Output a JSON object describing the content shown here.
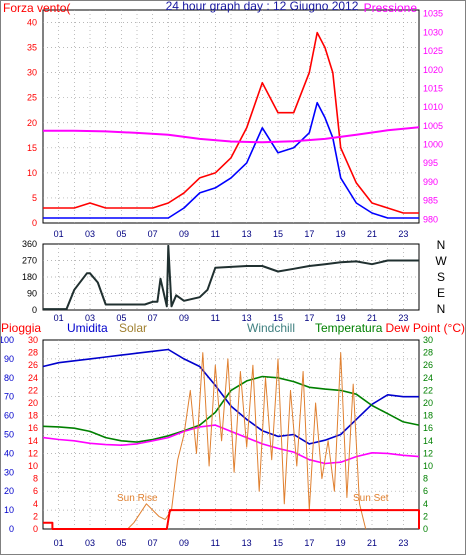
{
  "chart_data": [
    {
      "type": "line",
      "title": "24 hour graph day : 12 Giugno 2012",
      "left_label": "Forza vento(",
      "right_label": "Pressione",
      "x_ticks": [
        "01",
        "03",
        "05",
        "07",
        "09",
        "11",
        "13",
        "15",
        "17",
        "19",
        "21",
        "23"
      ],
      "y_left_ticks": [
        "0",
        "5",
        "10",
        "15",
        "20",
        "25",
        "30",
        "35",
        "40"
      ],
      "y_left_range": [
        0,
        42.5
      ],
      "y_right_ticks": [
        "980",
        "985",
        "990",
        "995",
        "1000",
        "1005",
        "1010",
        "1015",
        "1020",
        "1025",
        "1030",
        "1035"
      ],
      "y_right_range": [
        979,
        1036
      ],
      "grid": true,
      "colors": {
        "gust": "#ff0000",
        "wind": "#0000ff",
        "pressure": "#ff00ff"
      },
      "series": [
        {
          "key": "gust",
          "x": [
            0,
            1,
            2,
            3,
            4,
            5,
            6,
            7,
            8,
            9,
            10,
            11,
            12,
            13,
            14,
            15,
            16,
            17,
            17.5,
            18,
            18.5,
            19,
            20,
            21,
            22,
            23,
            24
          ],
          "values": [
            3,
            3,
            3,
            4,
            3,
            3,
            3,
            3,
            4,
            6,
            9,
            10,
            13,
            19,
            28,
            22,
            22,
            30,
            38,
            35,
            30,
            15,
            8,
            4,
            3,
            2,
            2
          ]
        },
        {
          "key": "wind",
          "x": [
            0,
            1,
            2,
            3,
            4,
            5,
            6,
            7,
            8,
            9,
            10,
            11,
            12,
            13,
            14,
            15,
            16,
            17,
            17.5,
            18,
            18.5,
            19,
            20,
            21,
            22,
            23,
            24
          ],
          "values": [
            1,
            1,
            1,
            1,
            1,
            1,
            1,
            1,
            1,
            3,
            6,
            7,
            9,
            12,
            19,
            14,
            15,
            18,
            24,
            21,
            17,
            9,
            4,
            2,
            1,
            1,
            1
          ]
        },
        {
          "key": "pressure",
          "x": [
            0,
            2,
            4,
            6,
            8,
            10,
            12,
            14,
            16,
            18,
            20,
            22,
            24
          ],
          "values": [
            1003.7,
            1003.7,
            1003.5,
            1003.1,
            1002.6,
            1001.5,
            1000.8,
            1000.6,
            1000.9,
            1001.5,
            1002.6,
            1003.8,
            1004.6
          ]
        }
      ]
    },
    {
      "type": "line",
      "y_ticks": [
        "0",
        "90",
        "180",
        "270",
        "360"
      ],
      "y_range": [
        0,
        360
      ],
      "compass_labels": [
        "N",
        "W",
        "S",
        "E",
        "N"
      ],
      "x_ticks": [
        "01",
        "03",
        "05",
        "07",
        "09",
        "11",
        "13",
        "15",
        "17",
        "19",
        "21",
        "23"
      ],
      "grid": true,
      "color": "#203030",
      "series": [
        {
          "key": "direction",
          "x": [
            0,
            1.3,
            1.5,
            2,
            2.8,
            3,
            3.5,
            4,
            6.5,
            7,
            7.3,
            7.5,
            7.9,
            8,
            8.2,
            8.5,
            9,
            10,
            10.5,
            11,
            12,
            13,
            14,
            15,
            16,
            17,
            18,
            19,
            20,
            21,
            22,
            23,
            24
          ],
          "values": [
            5,
            5,
            5,
            110,
            200,
            200,
            150,
            30,
            30,
            45,
            45,
            170,
            20,
            350,
            20,
            80,
            50,
            70,
            110,
            230,
            235,
            240,
            240,
            210,
            225,
            240,
            250,
            260,
            265,
            250,
            270,
            270,
            270
          ]
        }
      ]
    },
    {
      "type": "line",
      "labels": [
        "Pioggia",
        "Umidita",
        "Solar",
        "Windchill",
        "Temperatura",
        "Dew Point (°C)"
      ],
      "x_ticks": [
        "01",
        "03",
        "05",
        "07",
        "09",
        "11",
        "13",
        "15",
        "17",
        "19",
        "21",
        "23"
      ],
      "y_humidity_ticks": [
        "0",
        "10",
        "20",
        "30",
        "40",
        "50",
        "60",
        "70",
        "80",
        "90",
        "100"
      ],
      "y_humidity_range": [
        0,
        100
      ],
      "y_rain_ticks": [
        "0",
        "2",
        "4",
        "6",
        "8",
        "10",
        "12",
        "14",
        "16",
        "18",
        "20",
        "22",
        "24",
        "26",
        "28",
        "30"
      ],
      "y_rain_range": [
        0,
        30
      ],
      "y_temp_ticks": [
        "0",
        "2",
        "4",
        "6",
        "8",
        "10",
        "12",
        "14",
        "16",
        "18",
        "20",
        "22",
        "24",
        "26",
        "28",
        "30"
      ],
      "y_temp_range": [
        0,
        30
      ],
      "annotations": {
        "sunrise": "Sun Rise",
        "sunset": "Sun Set"
      },
      "grid": true,
      "colors": {
        "rain": "#ff0000",
        "humidity": "#0000cc",
        "solar": "#e08030",
        "temperature": "#008000",
        "dewpoint": "#ff00ff"
      },
      "series": [
        {
          "key": "humidity",
          "x": [
            0,
            1,
            2,
            3,
            4,
            5,
            6,
            7,
            8,
            9,
            10,
            11,
            12,
            13,
            14,
            15,
            16,
            17,
            18,
            19,
            20,
            21,
            22,
            23,
            24
          ],
          "values": [
            86,
            88,
            89,
            90,
            91,
            92,
            93,
            94,
            95,
            90,
            86,
            76,
            65,
            58,
            52,
            49,
            50,
            45,
            47,
            50,
            58,
            66,
            71,
            70,
            70
          ]
        },
        {
          "key": "temperature",
          "x": [
            0,
            1,
            2,
            3,
            4,
            5,
            6,
            7,
            8,
            9,
            10,
            11,
            12,
            13,
            14,
            15,
            16,
            17,
            18,
            19,
            20,
            21,
            22,
            23,
            24
          ],
          "values": [
            16.3,
            16.2,
            16,
            15.5,
            14.5,
            14,
            13.8,
            14.2,
            14.8,
            15.6,
            16.5,
            18.5,
            22,
            23.5,
            24.2,
            24,
            23.4,
            22.5,
            22.2,
            22,
            21.4,
            19.6,
            18.3,
            17,
            16.5
          ]
        },
        {
          "key": "dewpoint",
          "x": [
            0,
            1,
            2,
            3,
            4,
            5,
            6,
            7,
            8,
            9,
            10,
            11,
            12,
            13,
            14,
            15,
            16,
            17,
            18,
            19,
            20,
            21,
            22,
            23,
            24
          ],
          "values": [
            14.5,
            14.2,
            14,
            13.6,
            13.4,
            13.3,
            13.5,
            14,
            14.5,
            15.5,
            16.2,
            16.5,
            15.5,
            14.5,
            13.5,
            12.8,
            12.2,
            11,
            10.4,
            10.6,
            11.5,
            12.1,
            12,
            11.7,
            11.5
          ]
        },
        {
          "key": "solar",
          "x": [
            5.4,
            5.8,
            6.2,
            6.6,
            7,
            7.4,
            7.8,
            8.2,
            8.6,
            9,
            9.4,
            9.8,
            10.2,
            10.6,
            11,
            11.4,
            11.8,
            12.2,
            12.6,
            13,
            13.4,
            13.8,
            14.2,
            14.6,
            15,
            15.4,
            15.8,
            16.2,
            16.6,
            17,
            17.4,
            17.8,
            18.2,
            18.6,
            19,
            19.4,
            19.8,
            20.2,
            20.6
          ],
          "values": [
            0,
            1,
            2.5,
            4,
            3,
            2,
            1.5,
            3,
            11,
            15,
            22,
            12,
            28,
            10,
            26,
            14,
            27,
            9,
            25,
            13,
            26,
            6,
            24,
            11,
            27,
            4,
            22,
            10,
            25,
            3,
            20,
            8,
            14,
            6,
            28,
            5,
            23,
            4,
            0
          ]
        },
        {
          "key": "rain",
          "x": [
            0,
            0.6,
            0.6,
            5.4,
            7.9,
            8.1,
            24,
            24
          ],
          "values": [
            1,
            1,
            0,
            0,
            0,
            3,
            3,
            0
          ]
        }
      ]
    }
  ]
}
